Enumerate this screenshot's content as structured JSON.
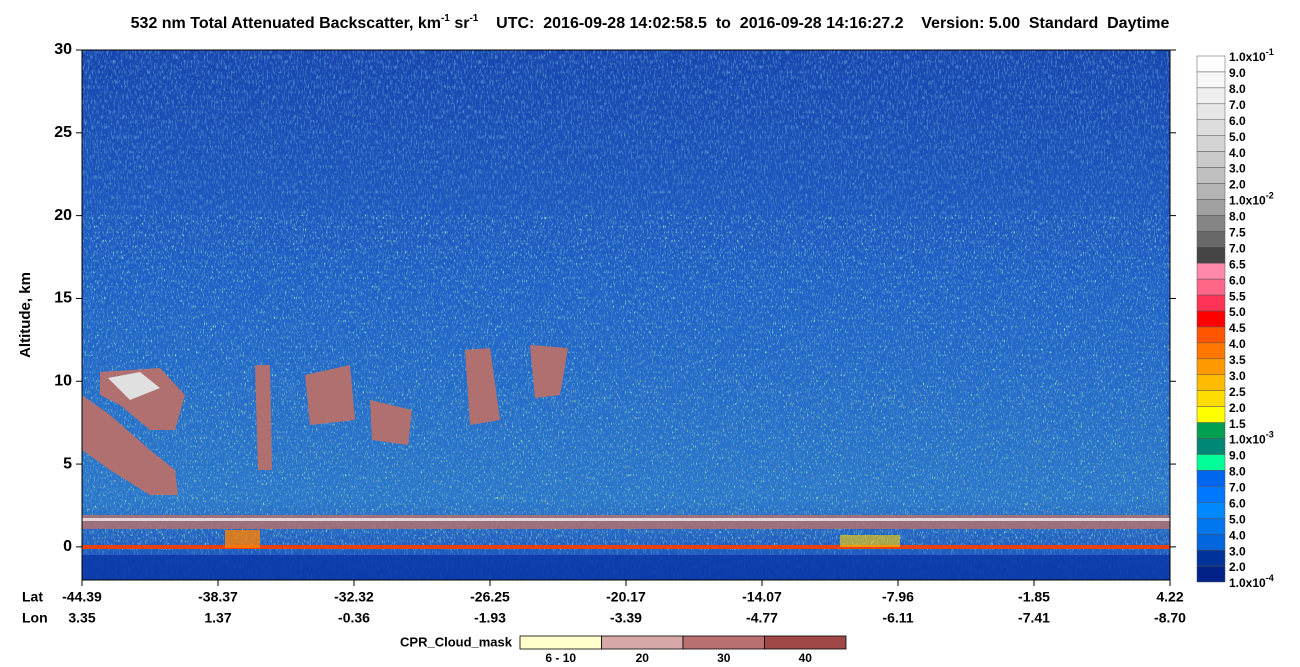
{
  "chart_data": {
    "type": "curtain",
    "title": [
      "532 nm Total Attenuated Backscatter, km",
      "-1",
      " sr",
      "-1",
      "    UTC:  2016-09-28 14:02:58.5  to  2016-09-28 14:16:27.2    Version: 5.00  Standard  Daytime"
    ],
    "y_label": "Altitude, km",
    "ylim": [
      -2,
      30
    ],
    "yticks": [
      0,
      5,
      10,
      15,
      20,
      25,
      30
    ],
    "x_rows": [
      {
        "name": "Lat",
        "labels": [
          "-44.39",
          "-38.37",
          "-32.32",
          "-26.25",
          "-20.17",
          "-14.07",
          "-7.96",
          "-1.85",
          "4.22"
        ]
      },
      {
        "name": "Lon",
        "labels": [
          "3.35",
          "1.37",
          "-0.36",
          "-1.93",
          "-3.39",
          "-4.77",
          "-6.11",
          "-7.41",
          "-8.70"
        ]
      }
    ],
    "colorbar": {
      "labels": [
        {
          "text": "1.0x10",
          "sup": "-1"
        },
        "9.0",
        "8.0",
        "7.0",
        "6.0",
        "5.0",
        "4.0",
        "3.0",
        "2.0",
        {
          "text": "1.0x10",
          "sup": "-2"
        },
        "8.0",
        "7.5",
        "7.0",
        "6.5",
        "6.0",
        "5.5",
        "5.0",
        "4.5",
        "4.0",
        "3.5",
        "3.0",
        "2.5",
        "2.0",
        "1.5",
        {
          "text": "1.0x10",
          "sup": "-3"
        },
        "9.0",
        "8.0",
        "7.0",
        "6.0",
        "5.0",
        "4.0",
        "3.0",
        "2.0",
        {
          "text": "1.0x10",
          "sup": "-4"
        }
      ],
      "colors": [
        "#ffffff",
        "#f7f7f7",
        "#efefef",
        "#e6e6e6",
        "#dddddd",
        "#d4d4d4",
        "#cacaca",
        "#c0c0c0",
        "#b4b4b4",
        "#a0a0a0",
        "#858585",
        "#686868",
        "#454545",
        "#ff88aa",
        "#ff6688",
        "#ff3355",
        "#ff0000",
        "#ff5500",
        "#ff7700",
        "#ff9900",
        "#ffbb00",
        "#ffdd00",
        "#ffff00",
        "#00a050",
        "#008877",
        "#00ff99",
        "#0066ee",
        "#0077ff",
        "#0088ff",
        "#0077ee",
        "#0066dd",
        "#003399",
        "#002288"
      ]
    },
    "cloud_mask": {
      "title": "CPR_Cloud_mask",
      "labels": [
        "6 - 10",
        "20",
        "30",
        "40"
      ],
      "colors": [
        "#ffffcc",
        "#d8a8a8",
        "#b87070",
        "#a04848"
      ]
    }
  }
}
